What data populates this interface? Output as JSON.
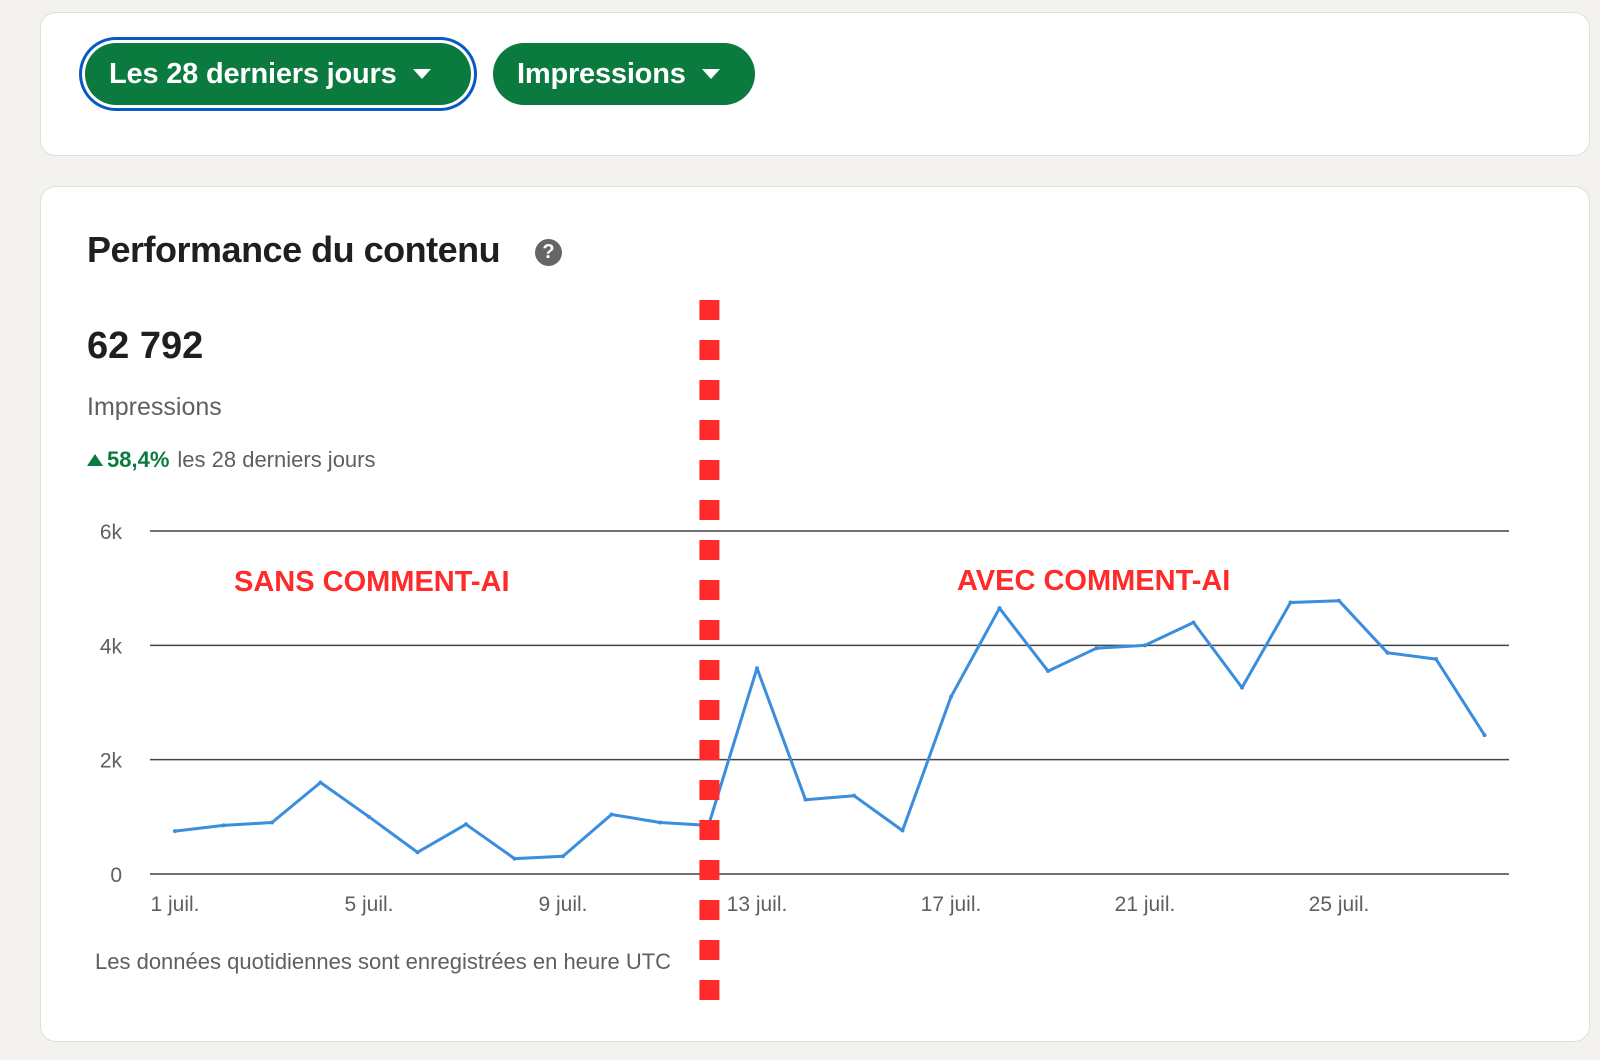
{
  "filters": {
    "period": {
      "label": "Les 28 derniers jours",
      "icon": "chevron-down-icon"
    },
    "metric": {
      "label": "Impressions",
      "icon": "chevron-down-icon"
    }
  },
  "performance": {
    "title": "Performance du contenu",
    "help_icon": "question-circle-icon",
    "total_value": "62 792",
    "total_label": "Impressions",
    "trend_value": "58,4%",
    "trend_direction": "up",
    "trend_period": "les 28 derniers jours",
    "footnote": "Les données quotidiennes sont enregistrées en heure UTC"
  },
  "colors": {
    "accent_green": "#0b7a3e",
    "line_blue": "#3b8ddd",
    "annotation_red": "#ff2a2a",
    "focus_ring": "#0a58c2"
  },
  "chart_data": {
    "type": "line",
    "title": "",
    "xlabel": "",
    "ylabel": "",
    "x": [
      "1 juil.",
      "2 juil.",
      "3 juil.",
      "4 juil.",
      "5 juil.",
      "6 juil.",
      "7 juil.",
      "8 juil.",
      "9 juil.",
      "10 juil.",
      "11 juil.",
      "12 juil.",
      "13 juil.",
      "14 juil.",
      "15 juil.",
      "16 juil.",
      "17 juil.",
      "18 juil.",
      "19 juil.",
      "20 juil.",
      "21 juil.",
      "22 juil.",
      "23 juil.",
      "24 juil.",
      "25 juil.",
      "26 juil.",
      "27 juil.",
      "28 juil."
    ],
    "x_tick_labels": [
      "1 juil.",
      "5 juil.",
      "9 juil.",
      "13 juil.",
      "17 juil.",
      "21 juil.",
      "25 juil."
    ],
    "y_ticks": [
      "0",
      "2k",
      "4k",
      "6k"
    ],
    "ylim": [
      0,
      6000
    ],
    "grid": true,
    "series": [
      {
        "values": [
          750,
          850,
          900,
          1600,
          1000,
          380,
          870,
          270,
          310,
          1040,
          900,
          850,
          3600,
          1300,
          1370,
          760,
          3100,
          4650,
          3550,
          3950,
          4000,
          4400,
          3260,
          4750,
          4780,
          3870,
          3760,
          2430
        ]
      }
    ],
    "annotations": [
      {
        "text": "SANS  COMMENT-AI",
        "region": "before"
      },
      {
        "text": "AVEC  COMMENT-AI",
        "region": "after"
      }
    ],
    "divider_between": [
      "12 juil.",
      "13 juil."
    ]
  }
}
